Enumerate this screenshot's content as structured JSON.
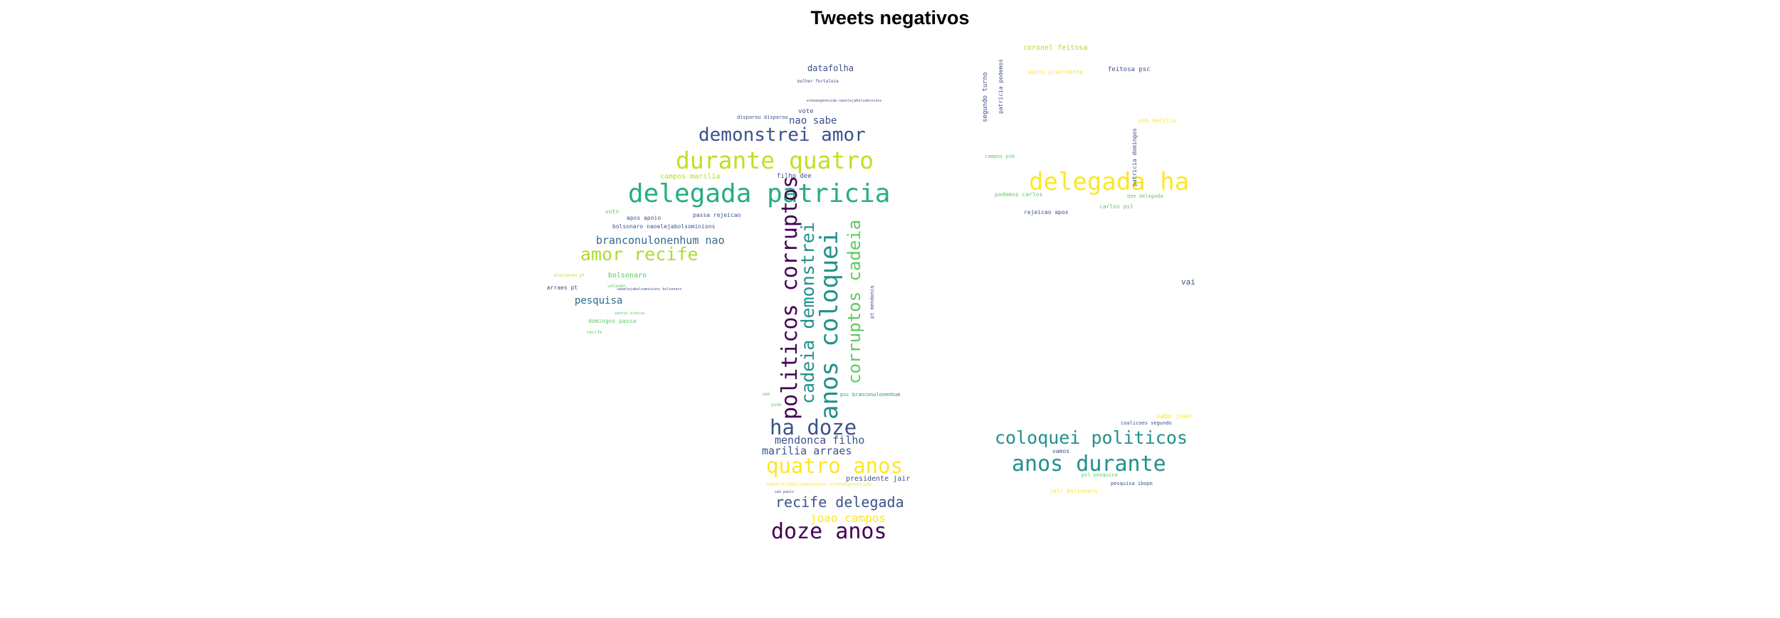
{
  "title": "Tweets negativos",
  "palette": {
    "dark_purple": "#440154",
    "indigo": "#3b528b",
    "teal": "#21918c",
    "green": "#27ad81",
    "lime": "#5ec962",
    "yellow_green": "#addc30",
    "yellow": "#fde725"
  },
  "words": [
    {
      "text": "delegada patricia",
      "color": "#27ad81"
    },
    {
      "text": "durante quatro",
      "color": "#c2df23"
    },
    {
      "text": "demonstrei amor",
      "color": "#3b528b"
    },
    {
      "text": "amor recife",
      "color": "#addc30"
    },
    {
      "text": "branconulonenhum nao",
      "color": "#31688e"
    },
    {
      "text": "pesquisa",
      "color": "#31688e"
    },
    {
      "text": "datafolha",
      "color": "#3b528b"
    },
    {
      "text": "nao sabe",
      "color": "#3b528b"
    },
    {
      "text": "campos marilia",
      "color": "#addc30"
    },
    {
      "text": "filho dee",
      "color": "#3b528b"
    },
    {
      "text": "bolsonaro",
      "color": "#5ec962"
    },
    {
      "text": "arraes pt",
      "color": "#3b528b"
    },
    {
      "text": "domingos passa",
      "color": "#5ec962"
    },
    {
      "text": "apos apoio",
      "color": "#3b528b"
    },
    {
      "text": "passa rejeicao",
      "color": "#3b528b"
    },
    {
      "text": "bolsonaro naoelejabolsominions",
      "color": "#3b528b"
    },
    {
      "text": "vote",
      "color": "#3b528b"
    },
    {
      "text": "voto",
      "color": "#5ec962"
    },
    {
      "text": "politicos corruptos",
      "color": "#440154"
    },
    {
      "text": "anos coloquei",
      "color": "#21918c"
    },
    {
      "text": "cadeia demonstrei",
      "color": "#21918c"
    },
    {
      "text": "corruptos cadeia",
      "color": "#5ec962"
    },
    {
      "text": "ha doze",
      "color": "#3b528b"
    },
    {
      "text": "mendonca filho",
      "color": "#3b528b"
    },
    {
      "text": "marilia arraes",
      "color": "#3b528b"
    },
    {
      "text": "quatro anos",
      "color": "#fde725"
    },
    {
      "text": "recife delegada",
      "color": "#3b528b"
    },
    {
      "text": "joao campos",
      "color": "#fde725"
    },
    {
      "text": "doze anos",
      "color": "#440154"
    },
    {
      "text": "presidente jair",
      "color": "#3b528b"
    },
    {
      "text": "pt mendonca",
      "color": "#3b528b"
    },
    {
      "text": "delegada ha",
      "color": "#fde725"
    },
    {
      "text": "coloquei politicos",
      "color": "#21918c"
    },
    {
      "text": "anos durante",
      "color": "#21918c"
    },
    {
      "text": "segundo turno",
      "color": "#3b528b"
    },
    {
      "text": "patricia podemos",
      "color": "#3b528b"
    },
    {
      "text": "coronel feitosa",
      "color": "#addc30"
    },
    {
      "text": "feitosa psc",
      "color": "#3b528b"
    },
    {
      "text": "apoio presidente",
      "color": "#fde725"
    },
    {
      "text": "psb marilia",
      "color": "#fde725"
    },
    {
      "text": "patricia domingos",
      "color": "#3b528b"
    },
    {
      "text": "podemos carlos",
      "color": "#5ec962"
    },
    {
      "text": "rejeicao apos",
      "color": "#3b528b"
    },
    {
      "text": "carlos psl",
      "color": "#5ec962"
    },
    {
      "text": "dee delegada",
      "color": "#5ec962"
    },
    {
      "text": "campos psb",
      "color": "#5ec962"
    },
    {
      "text": "vai",
      "color": "#3b528b"
    },
    {
      "text": "vamos",
      "color": "#3b528b"
    },
    {
      "text": "jair bolsonaro",
      "color": "#fde725"
    },
    {
      "text": "pesquisa ibope",
      "color": "#3b528b"
    },
    {
      "text": "sabe joao",
      "color": "#fde725"
    },
    {
      "text": "coalicoes segundo",
      "color": "#3b528b"
    },
    {
      "text": "psc branconulonenhum",
      "color": "#21918c"
    },
    {
      "text": "disparou disparou",
      "color": "#3b528b"
    },
    {
      "text": "eleitores pt",
      "color": "#addc30"
    },
    {
      "text": "psl pesquisa",
      "color": "#5ec962"
    },
    {
      "text": "vem",
      "color": "#5ec962"
    },
    {
      "text": "pode",
      "color": "#5ec962"
    },
    {
      "text": "naoelejabolsominions elenaogenocida",
      "color": "#fde725"
    },
    {
      "text": "sao paulo",
      "color": "#3b528b"
    },
    {
      "text": "mulher fortaleza",
      "color": "#3b528b"
    },
    {
      "text": "votando",
      "color": "#5ec962"
    },
    {
      "text": "recife",
      "color": "#5ec962"
    },
    {
      "text": "elenaogenocida naoelejabolsominions",
      "color": "#3b528b"
    },
    {
      "text": "pedras brancas",
      "color": "#5ec962"
    },
    {
      "text": "naoelejabolsominions bolsonaro",
      "color": "#3b528b"
    }
  ]
}
